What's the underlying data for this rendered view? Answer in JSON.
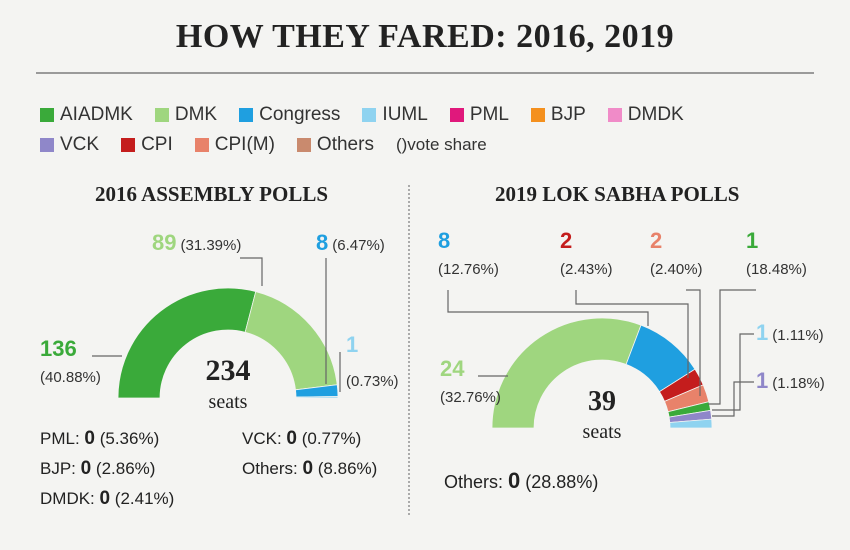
{
  "title": "HOW THEY FARED: 2016, 2019",
  "legend": {
    "items": [
      {
        "name": "AIADMK",
        "color": "#3aaa3a"
      },
      {
        "name": "DMK",
        "color": "#9fd67f"
      },
      {
        "name": "Congress",
        "color": "#1f9fe0"
      },
      {
        "name": "IUML",
        "color": "#8fd3f0"
      },
      {
        "name": "PML",
        "color": "#e0187c"
      },
      {
        "name": "BJP",
        "color": "#f4901e"
      },
      {
        "name": "DMDK",
        "color": "#f08bc8"
      },
      {
        "name": "VCK",
        "color": "#8f87c9"
      },
      {
        "name": "CPI",
        "color": "#c41d1d"
      },
      {
        "name": "CPI(M)",
        "color": "#e8826a"
      },
      {
        "name": "Others",
        "color": "#c98a6e"
      }
    ],
    "note": "()vote share"
  },
  "chart_data": [
    {
      "type": "pie",
      "title": "2016 ASSEMBLY POLLS",
      "total": "234",
      "total_unit": "seats",
      "slices": [
        {
          "party": "AIADMK",
          "seats": 136,
          "seats_label": "136",
          "vote_share": "(40.88%)",
          "color": "#3aaa3a"
        },
        {
          "party": "DMK",
          "seats": 89,
          "seats_label": "89",
          "vote_share": "(31.39%)",
          "color": "#9fd67f"
        },
        {
          "party": "Congress",
          "seats": 8,
          "seats_label": "8",
          "vote_share": "(6.47%)",
          "color": "#1f9fe0"
        },
        {
          "party": "IUML",
          "seats": 1,
          "seats_label": "1",
          "vote_share": "(0.73%)",
          "color": "#8fd3f0"
        }
      ],
      "zero_seat": [
        {
          "text": "PML: ",
          "value": "0",
          "share": " (5.36%)"
        },
        {
          "text": "BJP: ",
          "value": "0",
          "share": " (2.86%)"
        },
        {
          "text": "DMDK: ",
          "value": "0",
          "share": " (2.41%)"
        },
        {
          "text": "VCK: ",
          "value": "0",
          "share": " (0.77%)"
        },
        {
          "text": "Others: ",
          "value": "0",
          "share": " (8.86%)"
        }
      ]
    },
    {
      "type": "pie",
      "title": "2019 LOK SABHA POLLS",
      "total": "39",
      "total_unit": "seats",
      "slices": [
        {
          "party": "DMK",
          "seats": 24,
          "seats_label": "24",
          "vote_share": "(32.76%)",
          "color": "#9fd67f"
        },
        {
          "party": "Congress",
          "seats": 8,
          "seats_label": "8",
          "vote_share": "(12.76%)",
          "color": "#1f9fe0"
        },
        {
          "party": "CPI",
          "seats": 2,
          "seats_label": "2",
          "vote_share": "(2.43%)",
          "color": "#c41d1d"
        },
        {
          "party": "CPI(M)",
          "seats": 2,
          "seats_label": "2",
          "vote_share": "(2.40%)",
          "color": "#e8826a"
        },
        {
          "party": "AIADMK",
          "seats": 1,
          "seats_label": "1",
          "vote_share": "(18.48%)",
          "color": "#3aaa3a"
        },
        {
          "party": "VCK",
          "seats": 1,
          "seats_label": "1",
          "vote_share": "(1.18%)",
          "color": "#8f87c9"
        },
        {
          "party": "IUML",
          "seats": 1,
          "seats_label": "1",
          "vote_share": "(1.11%)",
          "color": "#8fd3f0"
        }
      ],
      "zero_seat": [
        {
          "text": "Others: ",
          "value": "0",
          "share": " (28.88%)"
        }
      ]
    }
  ]
}
